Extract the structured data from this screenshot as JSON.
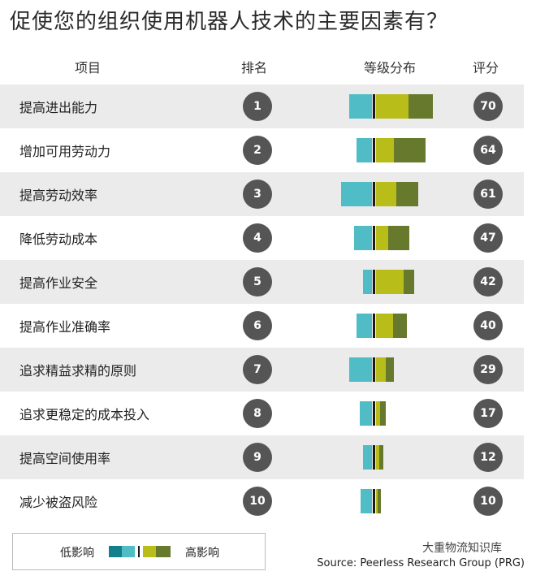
{
  "title": "促使您的组织使用机器人技术的主要因素有？",
  "headers": {
    "item": "项目",
    "rank": "排名",
    "distribution": "等级分布",
    "score": "评分"
  },
  "colors": {
    "c1": "#137f8c",
    "c2": "#4fbcc6",
    "c3": "#b8bd1a",
    "c4": "#66792c",
    "divider": "#1a1a1a",
    "circle": "#555555",
    "shade": "#ebebeb"
  },
  "chart_data": {
    "type": "bar",
    "title": "促使您的组织使用机器人技术的主要因素有？",
    "rows": [
      {
        "item": "提高进出能力",
        "rank": 1,
        "score": 70,
        "segments": [
          0,
          28,
          40,
          30
        ]
      },
      {
        "item": "增加可用劳动力",
        "rank": 2,
        "score": 64,
        "segments": [
          0,
          19,
          22,
          39
        ]
      },
      {
        "item": "提高劳动效率",
        "rank": 3,
        "score": 61,
        "segments": [
          0,
          38,
          25,
          27
        ]
      },
      {
        "item": "降低劳动成本",
        "rank": 4,
        "score": 47,
        "segments": [
          0,
          22,
          15,
          26
        ]
      },
      {
        "item": "提高作业安全",
        "rank": 5,
        "score": 42,
        "segments": [
          0,
          11,
          34,
          13
        ]
      },
      {
        "item": "提高作业准确率",
        "rank": 6,
        "score": 40,
        "segments": [
          0,
          19,
          21,
          17
        ]
      },
      {
        "item": "追求精益求精的原则",
        "rank": 7,
        "score": 29,
        "segments": [
          0,
          28,
          12,
          10
        ]
      },
      {
        "item": "追求更稳定的成本投入",
        "rank": 8,
        "score": 17,
        "segments": [
          0,
          15,
          5,
          7
        ]
      },
      {
        "item": "提高空间使用率",
        "rank": 9,
        "score": 12,
        "segments": [
          0,
          11,
          4,
          5
        ]
      },
      {
        "item": "减少被盗风险",
        "rank": 10,
        "score": 10,
        "segments": [
          0,
          14,
          2,
          4
        ]
      }
    ]
  },
  "legend": {
    "low": "低影响",
    "high": "高影响"
  },
  "source": "Source: Peerless Research Group (PRG)",
  "watermark": "大重物流知识库"
}
